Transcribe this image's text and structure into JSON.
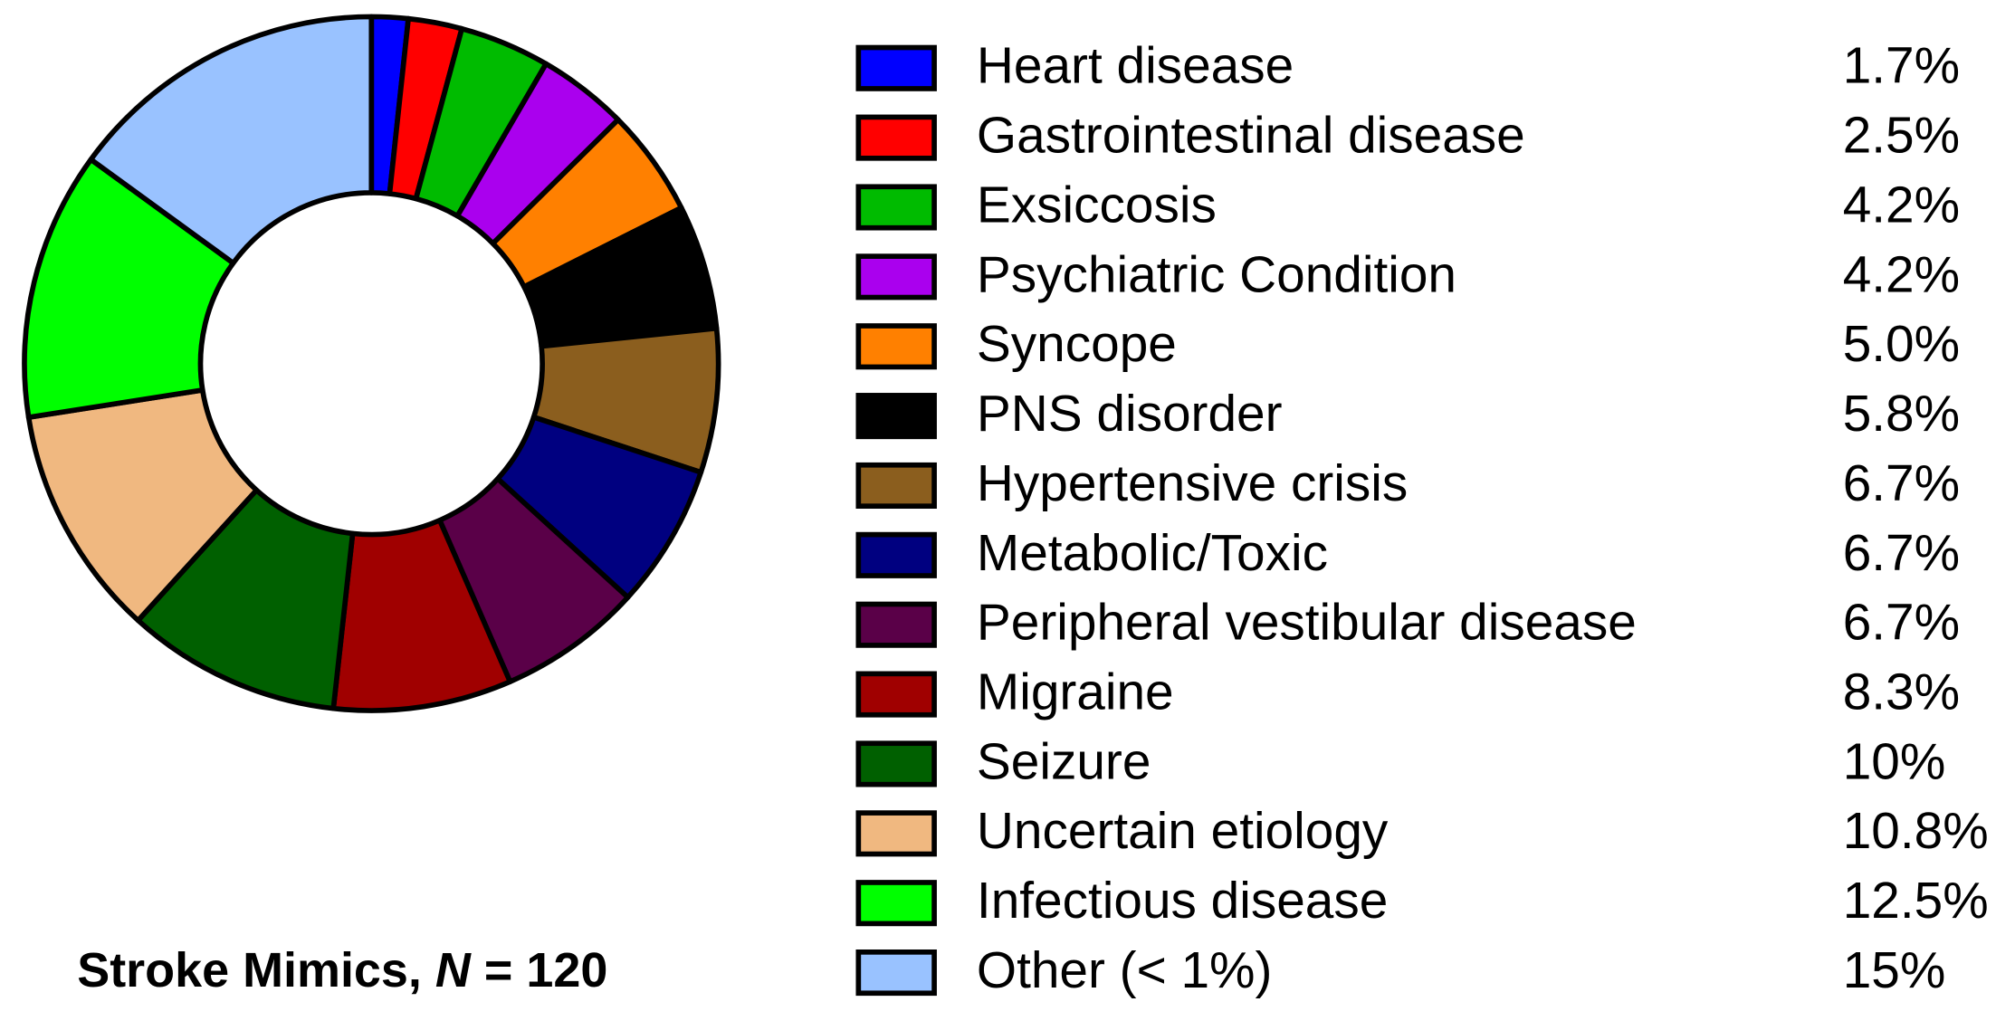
{
  "chart_data": {
    "type": "pie",
    "title": [
      "Stroke Mimics, ",
      "N",
      " = 120"
    ],
    "categories": [
      "Heart disease",
      "Gastrointestinal disease",
      "Exsiccosis",
      "Psychiatric Condition",
      "Syncope",
      "PNS disorder",
      "Hypertensive crisis",
      "Metabolic/Toxic",
      "Peripheral vestibular disease",
      "Migraine",
      "Seizure",
      "Uncertain etiology",
      "Infectious disease",
      "Other (< 1%)"
    ],
    "values": [
      1.7,
      2.5,
      4.2,
      4.2,
      5.0,
      5.8,
      6.7,
      6.7,
      6.7,
      8.3,
      10,
      10.8,
      12.5,
      15
    ],
    "value_labels": [
      "1.7%",
      "2.5%",
      "4.2%",
      "4.2%",
      "5.0%",
      "5.8%",
      "6.7%",
      "6.7%",
      "6.7%",
      "8.3%",
      "10%",
      "10.8%",
      "12.5%",
      "15%"
    ],
    "colors": [
      "#0000ff",
      "#ff0000",
      "#00bb00",
      "#aa00ee",
      "#ff8000",
      "#000000",
      "#8b5e1e",
      "#000080",
      "#5a0048",
      "#a00000",
      "#006000",
      "#f0b880",
      "#00ff00",
      "#99c2ff"
    ],
    "donut": true,
    "legend": "right"
  }
}
